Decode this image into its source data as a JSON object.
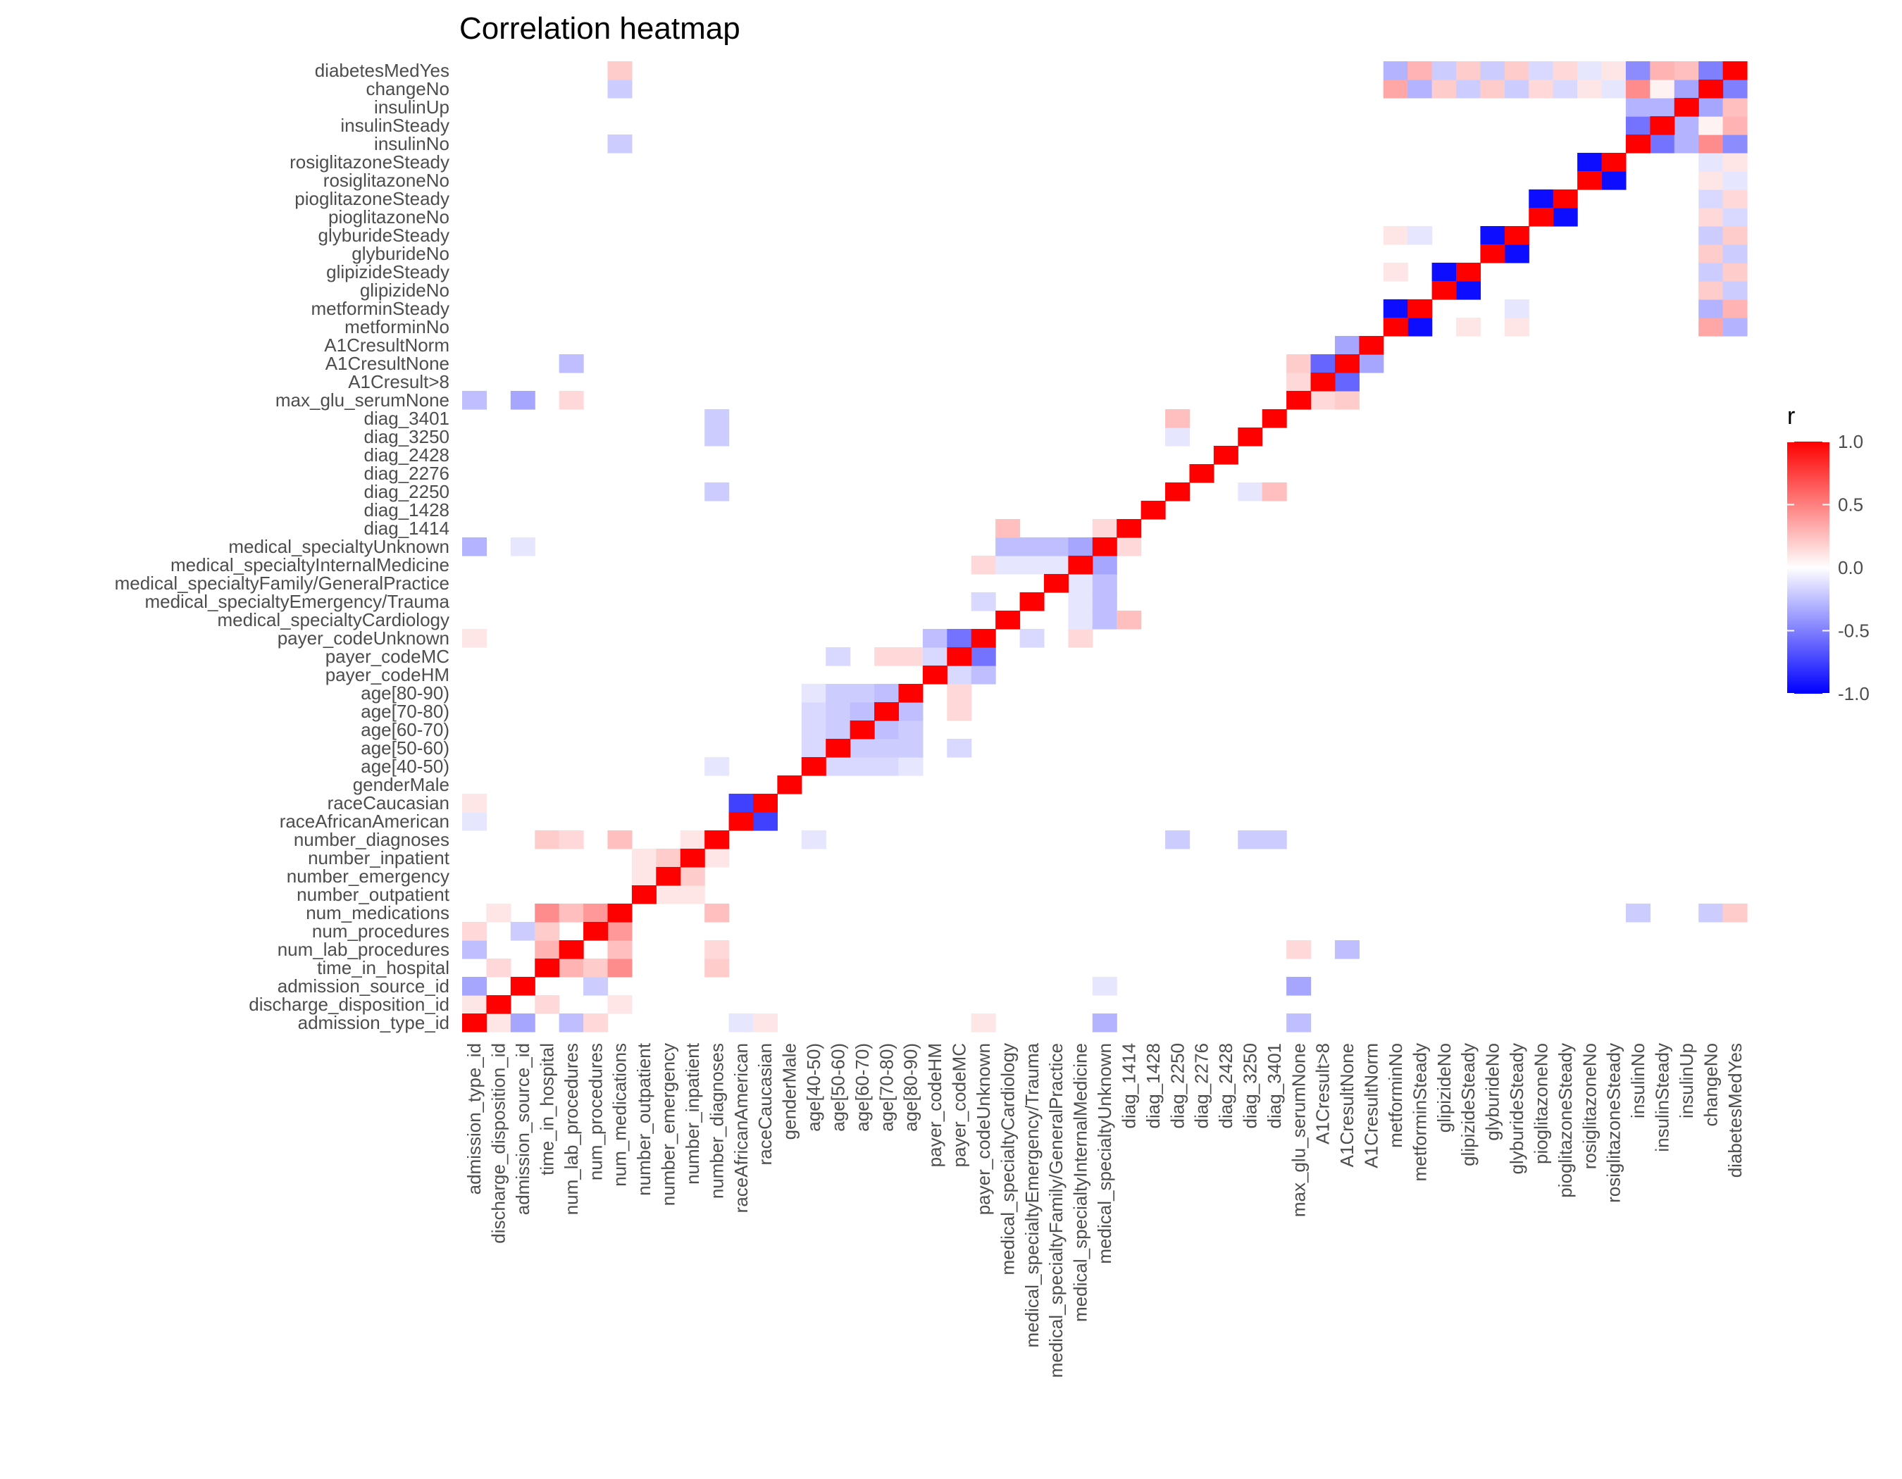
{
  "chart_data": {
    "type": "heatmap",
    "title": "Correlation heatmap",
    "xlabel": "",
    "ylabel": "",
    "variables": [
      "admission_type_id",
      "discharge_disposition_id",
      "admission_source_id",
      "time_in_hospital",
      "num_lab_procedures",
      "num_procedures",
      "num_medications",
      "number_outpatient",
      "number_emergency",
      "number_inpatient",
      "number_diagnoses",
      "raceAfricanAmerican",
      "raceCaucasian",
      "genderMale",
      "age[40-50)",
      "age[50-60)",
      "age[60-70)",
      "age[70-80)",
      "age[80-90)",
      "payer_codeHM",
      "payer_codeMC",
      "payer_codeUnknown",
      "medical_specialtyCardiology",
      "medical_specialtyEmergency/Trauma",
      "medical_specialtyFamily/GeneralPractice",
      "medical_specialtyInternalMedicine",
      "medical_specialtyUnknown",
      "diag_1414",
      "diag_1428",
      "diag_2250",
      "diag_2276",
      "diag_2428",
      "diag_3250",
      "diag_3401",
      "max_glu_serumNone",
      "A1Cresult>8",
      "A1CresultNone",
      "A1CresultNorm",
      "metforminNo",
      "metforminSteady",
      "glipizideNo",
      "glipizideSteady",
      "glyburideNo",
      "glyburideSteady",
      "pioglitazoneNo",
      "pioglitazoneSteady",
      "rosiglitazoneNo",
      "rosiglitazoneSteady",
      "insulinNo",
      "insulinSteady",
      "insulinUp",
      "changeNo",
      "diabetesMedYes"
    ],
    "correlations": [
      {
        "a": "admission_type_id",
        "b": "admission_source_id",
        "r": -0.35
      },
      {
        "a": "admission_type_id",
        "b": "discharge_disposition_id",
        "r": 0.1
      },
      {
        "a": "admission_type_id",
        "b": "num_lab_procedures",
        "r": -0.25
      },
      {
        "a": "admission_type_id",
        "b": "num_procedures",
        "r": 0.15
      },
      {
        "a": "admission_type_id",
        "b": "medical_specialtyUnknown",
        "r": -0.3
      },
      {
        "a": "admission_type_id",
        "b": "max_glu_serumNone",
        "r": -0.25
      },
      {
        "a": "admission_type_id",
        "b": "payer_codeUnknown",
        "r": 0.1
      },
      {
        "a": "admission_type_id",
        "b": "raceAfricanAmerican",
        "r": -0.1
      },
      {
        "a": "admission_type_id",
        "b": "raceCaucasian",
        "r": 0.1
      },
      {
        "a": "discharge_disposition_id",
        "b": "time_in_hospital",
        "r": 0.15
      },
      {
        "a": "discharge_disposition_id",
        "b": "num_medications",
        "r": 0.1
      },
      {
        "a": "admission_source_id",
        "b": "num_procedures",
        "r": -0.2
      },
      {
        "a": "admission_source_id",
        "b": "max_glu_serumNone",
        "r": -0.35
      },
      {
        "a": "admission_source_id",
        "b": "medical_specialtyUnknown",
        "r": -0.1
      },
      {
        "a": "time_in_hospital",
        "b": "num_lab_procedures",
        "r": 0.3
      },
      {
        "a": "time_in_hospital",
        "b": "num_procedures",
        "r": 0.2
      },
      {
        "a": "time_in_hospital",
        "b": "num_medications",
        "r": 0.45
      },
      {
        "a": "time_in_hospital",
        "b": "number_diagnoses",
        "r": 0.2
      },
      {
        "a": "num_lab_procedures",
        "b": "num_medications",
        "r": 0.25
      },
      {
        "a": "num_lab_procedures",
        "b": "number_diagnoses",
        "r": 0.15
      },
      {
        "a": "num_lab_procedures",
        "b": "A1CresultNone",
        "r": -0.25
      },
      {
        "a": "num_procedures",
        "b": "num_medications",
        "r": 0.4
      },
      {
        "a": "num_medications",
        "b": "number_diagnoses",
        "r": 0.25
      },
      {
        "a": "num_medications",
        "b": "insulinNo",
        "r": -0.2
      },
      {
        "a": "num_medications",
        "b": "changeNo",
        "r": -0.2
      },
      {
        "a": "num_medications",
        "b": "diabetesMedYes",
        "r": 0.2
      },
      {
        "a": "number_outpatient",
        "b": "number_emergency",
        "r": 0.1
      },
      {
        "a": "number_outpatient",
        "b": "number_inpatient",
        "r": 0.1
      },
      {
        "a": "number_emergency",
        "b": "number_inpatient",
        "r": 0.2
      },
      {
        "a": "number_inpatient",
        "b": "number_diagnoses",
        "r": 0.1
      },
      {
        "a": "number_diagnoses",
        "b": "diag_2250",
        "r": -0.2
      },
      {
        "a": "number_diagnoses",
        "b": "diag_3250",
        "r": -0.2
      },
      {
        "a": "number_diagnoses",
        "b": "diag_3401",
        "r": -0.2
      },
      {
        "a": "number_diagnoses",
        "b": "age[40-50)",
        "r": -0.1
      },
      {
        "a": "raceAfricanAmerican",
        "b": "raceCaucasian",
        "r": -0.75
      },
      {
        "a": "age[40-50)",
        "b": "age[50-60)",
        "r": -0.15
      },
      {
        "a": "age[40-50)",
        "b": "age[60-70)",
        "r": -0.15
      },
      {
        "a": "age[40-50)",
        "b": "age[70-80)",
        "r": -0.15
      },
      {
        "a": "age[40-50)",
        "b": "age[80-90)",
        "r": -0.1
      },
      {
        "a": "age[50-60)",
        "b": "age[60-70)",
        "r": -0.2
      },
      {
        "a": "age[50-60)",
        "b": "age[70-80)",
        "r": -0.2
      },
      {
        "a": "age[50-60)",
        "b": "age[80-90)",
        "r": -0.2
      },
      {
        "a": "age[60-70)",
        "b": "age[70-80)",
        "r": -0.25
      },
      {
        "a": "age[60-70)",
        "b": "age[80-90)",
        "r": -0.2
      },
      {
        "a": "age[70-80)",
        "b": "age[80-90)",
        "r": -0.25
      },
      {
        "a": "age[50-60)",
        "b": "payer_codeMC",
        "r": -0.15
      },
      {
        "a": "age[70-80)",
        "b": "payer_codeMC",
        "r": 0.15
      },
      {
        "a": "age[80-90)",
        "b": "payer_codeMC",
        "r": 0.15
      },
      {
        "a": "payer_codeHM",
        "b": "payer_codeMC",
        "r": -0.15
      },
      {
        "a": "payer_codeHM",
        "b": "payer_codeUnknown",
        "r": -0.25
      },
      {
        "a": "payer_codeMC",
        "b": "payer_codeUnknown",
        "r": -0.55
      },
      {
        "a": "payer_codeUnknown",
        "b": "medical_specialtyEmergency/Trauma",
        "r": -0.15
      },
      {
        "a": "payer_codeUnknown",
        "b": "medical_specialtyInternalMedicine",
        "r": 0.15
      },
      {
        "a": "medical_specialtyCardiology",
        "b": "medical_specialtyUnknown",
        "r": -0.25
      },
      {
        "a": "medical_specialtyEmergency/Trauma",
        "b": "medical_specialtyUnknown",
        "r": -0.25
      },
      {
        "a": "medical_specialtyFamily/GeneralPractice",
        "b": "medical_specialtyUnknown",
        "r": -0.25
      },
      {
        "a": "medical_specialtyInternalMedicine",
        "b": "medical_specialtyUnknown",
        "r": -0.35
      },
      {
        "a": "medical_specialtyCardiology",
        "b": "medical_specialtyInternalMedicine",
        "r": -0.1
      },
      {
        "a": "medical_specialtyEmergency/Trauma",
        "b": "medical_specialtyInternalMedicine",
        "r": -0.1
      },
      {
        "a": "medical_specialtyFamily/GeneralPractice",
        "b": "medical_specialtyInternalMedicine",
        "r": -0.1
      },
      {
        "a": "medical_specialtyCardiology",
        "b": "diag_1414",
        "r": 0.25
      },
      {
        "a": "medical_specialtyUnknown",
        "b": "diag_1414",
        "r": 0.15
      },
      {
        "a": "diag_2250",
        "b": "diag_3401",
        "r": 0.25
      },
      {
        "a": "diag_3250",
        "b": "diag_2250",
        "r": -0.1
      },
      {
        "a": "num_lab_procedures",
        "b": "max_glu_serumNone",
        "r": 0.15
      },
      {
        "a": "A1Cresult>8",
        "b": "A1CresultNone",
        "r": -0.6
      },
      {
        "a": "A1CresultNone",
        "b": "A1CresultNorm",
        "r": -0.35
      },
      {
        "a": "A1Cresult>8",
        "b": "max_glu_serumNone",
        "r": 0.15
      },
      {
        "a": "A1CresultNone",
        "b": "max_glu_serumNone",
        "r": 0.2
      },
      {
        "a": "metforminNo",
        "b": "metforminSteady",
        "r": -0.95
      },
      {
        "a": "glipizideNo",
        "b": "glipizideSteady",
        "r": -0.95
      },
      {
        "a": "glyburideNo",
        "b": "glyburideSteady",
        "r": -0.95
      },
      {
        "a": "pioglitazoneNo",
        "b": "pioglitazoneSteady",
        "r": -0.95
      },
      {
        "a": "rosiglitazoneNo",
        "b": "rosiglitazoneSteady",
        "r": -0.95
      },
      {
        "a": "insulinNo",
        "b": "insulinSteady",
        "r": -0.55
      },
      {
        "a": "insulinNo",
        "b": "insulinUp",
        "r": -0.3
      },
      {
        "a": "insulinNo",
        "b": "changeNo",
        "r": 0.45
      },
      {
        "a": "insulinNo",
        "b": "diabetesMedYes",
        "r": -0.45
      },
      {
        "a": "insulinSteady",
        "b": "insulinUp",
        "r": -0.3
      },
      {
        "a": "insulinSteady",
        "b": "changeNo",
        "r": 0.05
      },
      {
        "a": "insulinSteady",
        "b": "diabetesMedYes",
        "r": 0.3
      },
      {
        "a": "insulinUp",
        "b": "changeNo",
        "r": -0.35
      },
      {
        "a": "insulinUp",
        "b": "diabetesMedYes",
        "r": 0.25
      },
      {
        "a": "changeNo",
        "b": "diabetesMedYes",
        "r": -0.5
      },
      {
        "a": "metforminNo",
        "b": "changeNo",
        "r": 0.35
      },
      {
        "a": "metforminNo",
        "b": "diabetesMedYes",
        "r": -0.3
      },
      {
        "a": "metforminSteady",
        "b": "changeNo",
        "r": -0.3
      },
      {
        "a": "metforminSteady",
        "b": "diabetesMedYes",
        "r": 0.3
      },
      {
        "a": "glipizideNo",
        "b": "changeNo",
        "r": 0.2
      },
      {
        "a": "glipizideNo",
        "b": "diabetesMedYes",
        "r": -0.2
      },
      {
        "a": "glipizideSteady",
        "b": "changeNo",
        "r": -0.2
      },
      {
        "a": "glipizideSteady",
        "b": "diabetesMedYes",
        "r": 0.2
      },
      {
        "a": "glyburideNo",
        "b": "changeNo",
        "r": 0.2
      },
      {
        "a": "glyburideNo",
        "b": "diabetesMedYes",
        "r": -0.2
      },
      {
        "a": "glyburideSteady",
        "b": "changeNo",
        "r": -0.2
      },
      {
        "a": "glyburideSteady",
        "b": "diabetesMedYes",
        "r": 0.2
      },
      {
        "a": "pioglitazoneNo",
        "b": "changeNo",
        "r": 0.15
      },
      {
        "a": "pioglitazoneNo",
        "b": "diabetesMedYes",
        "r": -0.15
      },
      {
        "a": "pioglitazoneSteady",
        "b": "changeNo",
        "r": -0.15
      },
      {
        "a": "pioglitazoneSteady",
        "b": "diabetesMedYes",
        "r": 0.15
      },
      {
        "a": "rosiglitazoneNo",
        "b": "changeNo",
        "r": 0.1
      },
      {
        "a": "rosiglitazoneNo",
        "b": "diabetesMedYes",
        "r": -0.1
      },
      {
        "a": "rosiglitazoneSteady",
        "b": "changeNo",
        "r": -0.1
      },
      {
        "a": "rosiglitazoneSteady",
        "b": "diabetesMedYes",
        "r": 0.1
      },
      {
        "a": "metforminNo",
        "b": "glipizideSteady",
        "r": 0.1
      },
      {
        "a": "metforminNo",
        "b": "glyburideSteady",
        "r": 0.1
      },
      {
        "a": "metforminSteady",
        "b": "glyburideSteady",
        "r": -0.1
      }
    ],
    "legend": {
      "title": "r",
      "placement": "right",
      "ticks": [
        1.0,
        0.5,
        0.0,
        -0.5,
        -1.0
      ],
      "tick_labels": [
        "1.0",
        "0.5",
        "0.0",
        "-0.5",
        "-1.0"
      ],
      "range": [
        -1.0,
        1.0
      ]
    },
    "colors": {
      "low": "#0000ff",
      "mid": "#ffffff",
      "high": "#ff0000"
    },
    "grid": false
  }
}
